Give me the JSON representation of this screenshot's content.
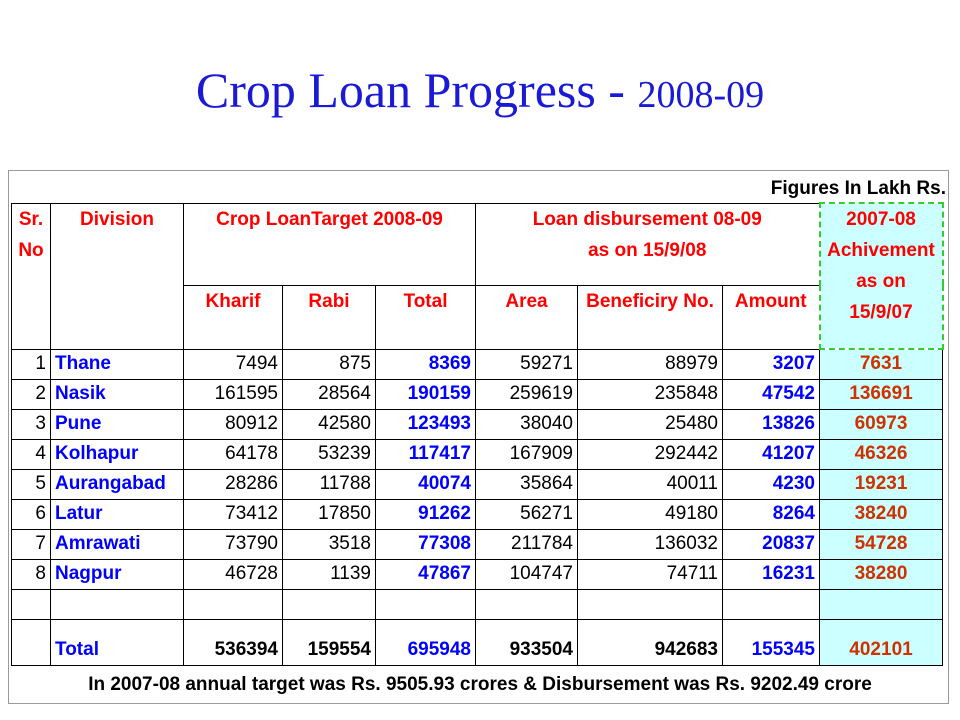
{
  "title": {
    "main": "Crop Loan Progress - ",
    "year": "2008-09"
  },
  "units_note": "Figures In Lakh Rs.",
  "headers": {
    "sr": [
      "Sr.",
      "No"
    ],
    "division": "Division",
    "target_group": "Crop LoanTarget 2008-09",
    "disb_group": [
      "Loan disbursement 08-09",
      "as on 15/9/08"
    ],
    "achievement": [
      "2007-08",
      "Achivement",
      "as on",
      "15/9/07"
    ],
    "kharif": "Kharif",
    "rabi": "Rabi",
    "total": "Total",
    "area": "Area",
    "beneficiary": "Beneficiry No.",
    "amount": "Amount"
  },
  "rows": [
    {
      "sr": "1",
      "division": "Thane",
      "kharif": "7494",
      "rabi": "875",
      "total": "8369",
      "area": "59271",
      "beneficiary": "88979",
      "amount": "3207",
      "achievement": "7631"
    },
    {
      "sr": "2",
      "division": "Nasik",
      "kharif": "161595",
      "rabi": "28564",
      "total": "190159",
      "area": "259619",
      "beneficiary": "235848",
      "amount": "47542",
      "achievement": "136691"
    },
    {
      "sr": "3",
      "division": "Pune",
      "kharif": "80912",
      "rabi": "42580",
      "total": "123493",
      "area": "38040",
      "beneficiary": "25480",
      "amount": "13826",
      "achievement": "60973"
    },
    {
      "sr": "4",
      "division": "Kolhapur",
      "kharif": "64178",
      "rabi": "53239",
      "total": "117417",
      "area": "167909",
      "beneficiary": "292442",
      "amount": "41207",
      "achievement": "46326"
    },
    {
      "sr": "5",
      "division": "Aurangabad",
      "kharif": "28286",
      "rabi": "11788",
      "total": "40074",
      "area": "35864",
      "beneficiary": "40011",
      "amount": "4230",
      "achievement": "19231"
    },
    {
      "sr": "6",
      "division": "Latur",
      "kharif": "73412",
      "rabi": "17850",
      "total": "91262",
      "area": "56271",
      "beneficiary": "49180",
      "amount": "8264",
      "achievement": "38240"
    },
    {
      "sr": "7",
      "division": "Amrawati",
      "kharif": "73790",
      "rabi": "3518",
      "total": "77308",
      "area": "211784",
      "beneficiary": "136032",
      "amount": "20837",
      "achievement": "54728"
    },
    {
      "sr": "8",
      "division": "Nagpur",
      "kharif": "46728",
      "rabi": "1139",
      "total": "47867",
      "area": "104747",
      "beneficiary": "74711",
      "amount": "16231",
      "achievement": "38280"
    }
  ],
  "totals": {
    "label": "Total",
    "kharif": "536394",
    "rabi": "159554",
    "total": "695948",
    "area": "933504",
    "beneficiary": "942683",
    "amount": "155345",
    "achievement": "402101"
  },
  "footer_note": "In 2007-08 annual target was Rs. 9505.93 crores & Disbursement was Rs. 9202.49 crore"
}
